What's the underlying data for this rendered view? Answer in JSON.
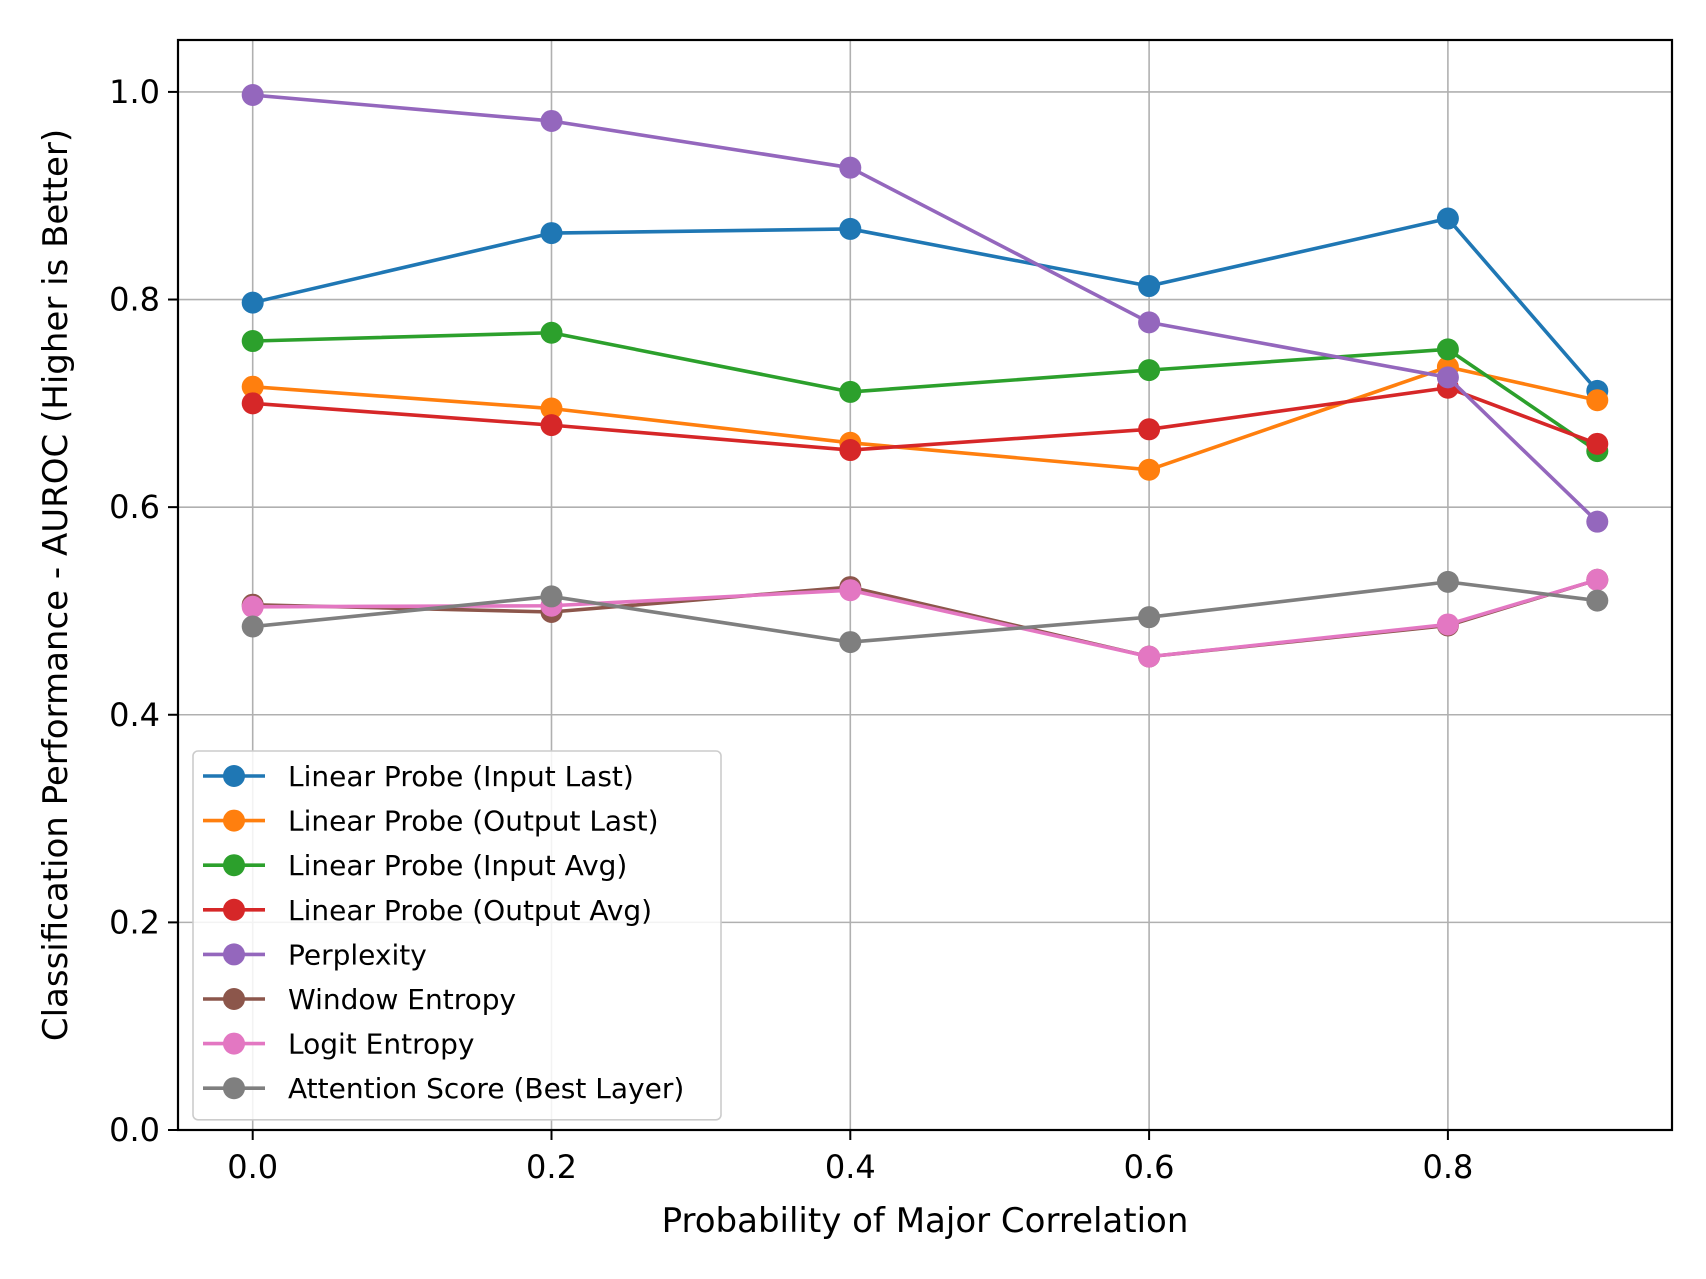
{
  "chart_data": {
    "type": "line",
    "title": "",
    "xlabel": "Probability of Major Correlation",
    "ylabel": "Classification Performance - AUROC (Higher is Better)",
    "x": [
      0.0,
      0.2,
      0.4,
      0.6,
      0.8,
      0.9
    ],
    "xlim": [
      -0.05,
      0.95
    ],
    "ylim": [
      0.0,
      1.05
    ],
    "xticks": [
      0.0,
      0.2,
      0.4,
      0.6,
      0.8
    ],
    "xtick_labels": [
      "0.0",
      "0.2",
      "0.4",
      "0.6",
      "0.8"
    ],
    "yticks": [
      0.0,
      0.2,
      0.4,
      0.6,
      0.8,
      1.0
    ],
    "ytick_labels": [
      "0.0",
      "0.2",
      "0.4",
      "0.6",
      "0.8",
      "1.0"
    ],
    "grid": true,
    "legend_position": "lower-left",
    "series": [
      {
        "name": "Linear Probe (Input Last)",
        "color": "#1f77b4",
        "values": [
          0.797,
          0.864,
          0.868,
          0.813,
          0.878,
          0.712
        ]
      },
      {
        "name": "Linear Probe (Output Last)",
        "color": "#ff7f0e",
        "values": [
          0.716,
          0.695,
          0.662,
          0.636,
          0.735,
          0.703
        ]
      },
      {
        "name": "Linear Probe (Input Avg)",
        "color": "#2ca02c",
        "values": [
          0.76,
          0.768,
          0.711,
          0.732,
          0.752,
          0.654
        ]
      },
      {
        "name": "Linear Probe (Output Avg)",
        "color": "#d62728",
        "values": [
          0.7,
          0.679,
          0.655,
          0.675,
          0.715,
          0.661
        ]
      },
      {
        "name": "Perplexity",
        "color": "#9467bd",
        "values": [
          0.997,
          0.972,
          0.927,
          0.778,
          0.725,
          0.586
        ]
      },
      {
        "name": "Window Entropy",
        "color": "#8c564b",
        "values": [
          0.506,
          0.499,
          0.523,
          0.456,
          0.486,
          0.53
        ]
      },
      {
        "name": "Logit Entropy",
        "color": "#e377c2",
        "values": [
          0.504,
          0.505,
          0.52,
          0.456,
          0.487,
          0.53
        ]
      },
      {
        "name": "Attention Score (Best Layer)",
        "color": "#7f7f7f",
        "values": [
          0.485,
          0.514,
          0.47,
          0.494,
          0.528,
          0.51
        ]
      }
    ]
  }
}
